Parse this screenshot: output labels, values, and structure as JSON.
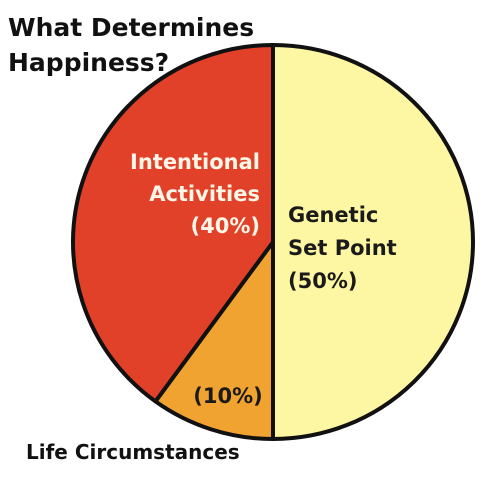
{
  "chart_data": {
    "type": "pie",
    "title": "What Determines Happiness?",
    "title_lines": [
      "What Determines",
      "Happiness?"
    ],
    "slices": [
      {
        "name": "Genetic Set Point",
        "label_lines": [
          "Genetic",
          "Set Point"
        ],
        "value": 50,
        "value_label": "(50%)",
        "color": "#fdf6a3"
      },
      {
        "name": "Life Circumstances",
        "label_lines": [],
        "value": 10,
        "value_label": "(10%)",
        "color": "#f0a330",
        "external_label": "Life Circumstances"
      },
      {
        "name": "Intentional Activities",
        "label_lines": [
          "Intentional",
          "Activities"
        ],
        "value": 40,
        "value_label": "(40%)",
        "color": "#e04128"
      }
    ],
    "outline_color": "#111111"
  }
}
